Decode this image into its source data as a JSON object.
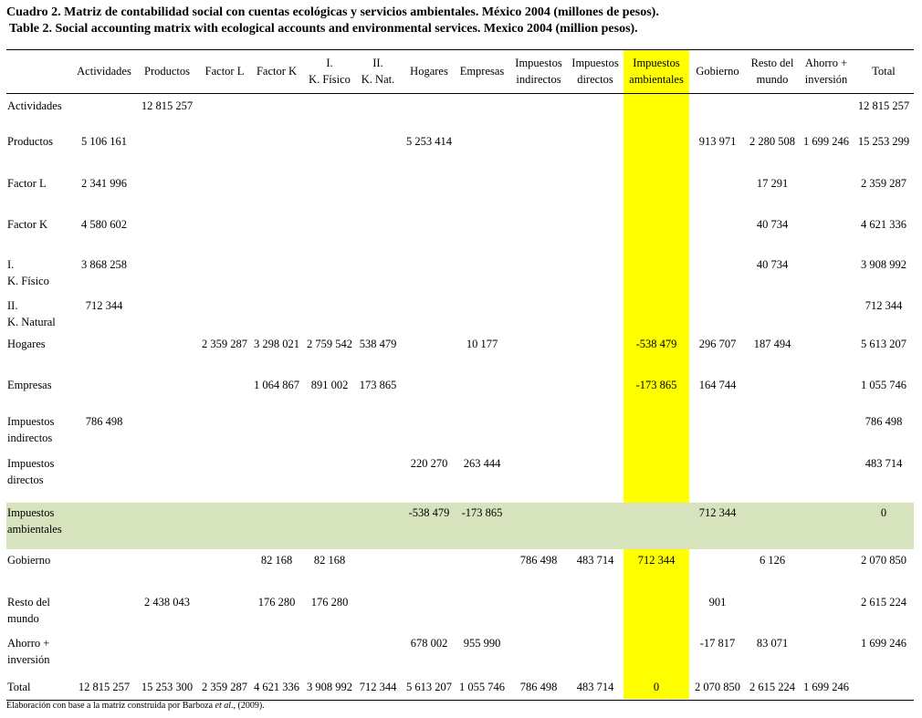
{
  "title_es": "Cuadro 2. Matriz de contabilidad social con cuentas ecológicas y servicios ambientales. México 2004 (millones de pesos).",
  "title_en": "Table 2. Social accounting matrix with ecological accounts and environmental services. Mexico 2004 (million pesos).",
  "highlight": {
    "row_color": "#d6e3bc",
    "column_color": "#ffff00"
  },
  "columns": [
    [
      "Actividades"
    ],
    [
      "Productos"
    ],
    [
      "Factor L"
    ],
    [
      "Factor K"
    ],
    [
      "I.",
      "K. Físico"
    ],
    [
      "II.",
      "K. Nat."
    ],
    [
      "Hogares"
    ],
    [
      "Empresas"
    ],
    [
      "Impuestos",
      "indirectos"
    ],
    [
      "Impuestos",
      "directos"
    ],
    [
      "Impuestos",
      "ambientales"
    ],
    [
      "Gobierno"
    ],
    [
      "Resto del",
      "mundo"
    ],
    [
      "Ahorro +",
      "inversión"
    ],
    [
      "Total"
    ]
  ],
  "rows": [
    {
      "label": [
        "Actividades"
      ],
      "values": [
        "",
        "12 815 257",
        "",
        "",
        "",
        "",
        "",
        "",
        "",
        "",
        "",
        "",
        "",
        "",
        "12 815 257"
      ]
    },
    {
      "label": [
        "Productos"
      ],
      "values": [
        "5 106 161",
        "",
        "",
        "",
        "",
        "",
        "5 253 414",
        "",
        "",
        "",
        "",
        "913 971",
        "2 280 508",
        "1 699 246",
        "15 253 299"
      ]
    },
    {
      "label": [
        "Factor L"
      ],
      "values": [
        "2 341 996",
        "",
        "",
        "",
        "",
        "",
        "",
        "",
        "",
        "",
        "",
        "",
        "17 291",
        "",
        "2 359 287"
      ]
    },
    {
      "label": [
        "Factor K"
      ],
      "values": [
        "4 580 602",
        "",
        "",
        "",
        "",
        "",
        "",
        "",
        "",
        "",
        "",
        "",
        "40 734",
        "",
        "4 621 336"
      ]
    },
    {
      "label": [
        "I.",
        "K. Físico"
      ],
      "values": [
        "3 868 258",
        "",
        "",
        "",
        "",
        "",
        "",
        "",
        "",
        "",
        "",
        "",
        "40 734",
        "",
        "3 908 992"
      ]
    },
    {
      "label": [
        "II.",
        "K. Natural"
      ],
      "values": [
        "712 344",
        "",
        "",
        "",
        "",
        "",
        "",
        "",
        "",
        "",
        "",
        "",
        "",
        "",
        "712 344"
      ]
    },
    {
      "label": [
        "Hogares"
      ],
      "values": [
        "",
        "",
        "2 359 287",
        "3 298 021",
        "2 759 542",
        "538 479",
        "",
        "10 177",
        "",
        "",
        "-538 479",
        "296 707",
        "187 494",
        "",
        "5 613 207"
      ]
    },
    {
      "label": [
        "Empresas"
      ],
      "values": [
        "",
        "",
        "",
        "1 064 867",
        "891 002",
        "173 865",
        "",
        "",
        "",
        "",
        "-173 865",
        "164 744",
        "",
        "",
        "1 055 746"
      ]
    },
    {
      "label": [
        "Impuestos",
        "indirectos"
      ],
      "values": [
        "786 498",
        "",
        "",
        "",
        "",
        "",
        "",
        "",
        "",
        "",
        "",
        "",
        "",
        "",
        "786 498"
      ]
    },
    {
      "label": [
        "Impuestos",
        "directos"
      ],
      "values": [
        "",
        "",
        "",
        "",
        "",
        "",
        "220 270",
        "263 444",
        "",
        "",
        "",
        "",
        "",
        "",
        "483 714"
      ]
    },
    {
      "label": [
        "Impuestos",
        "ambientales"
      ],
      "values": [
        "",
        "",
        "",
        "",
        "",
        "",
        "-538 479",
        "-173 865",
        "",
        "",
        "",
        "712 344",
        "",
        "",
        "0"
      ]
    },
    {
      "label": [
        "Gobierno"
      ],
      "values": [
        "",
        "",
        "",
        "82 168",
        "82 168",
        "",
        "",
        "",
        "786 498",
        "483 714",
        "712 344",
        "",
        "6 126",
        "",
        "2 070 850"
      ]
    },
    {
      "label": [
        "Resto del",
        "mundo"
      ],
      "values": [
        "",
        "2 438  043",
        "",
        "176 280",
        "176 280",
        "",
        "",
        "",
        "",
        "",
        "",
        "901",
        "",
        "",
        "2 615 224"
      ]
    },
    {
      "label": [
        "Ahorro +",
        "inversión"
      ],
      "values": [
        "",
        "",
        "",
        "",
        "",
        "",
        "678 002",
        "955 990",
        "",
        "",
        "",
        "-17 817",
        "83 071",
        "",
        "1 699 246"
      ]
    },
    {
      "label": [
        "Total"
      ],
      "values": [
        "12 815 257",
        "15 253 300",
        "2 359 287",
        "4 621 336",
        "3 908 992",
        "712 344",
        "5 613 207",
        "1 055 746",
        "786 498",
        "483 714",
        "0",
        "2 070 850",
        "2 615 224",
        "1 699 246",
        ""
      ]
    }
  ],
  "footnote": {
    "before": "Elaboración con base a la matriz construida por Barboza ",
    "italic": "et al",
    "after": "., (2009)."
  }
}
